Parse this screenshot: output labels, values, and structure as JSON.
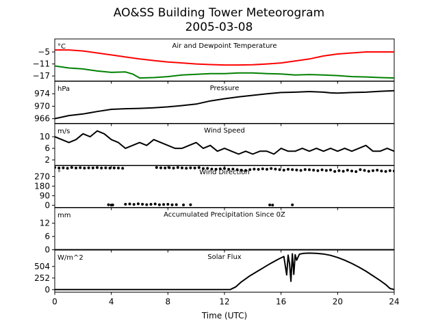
{
  "figure": {
    "title_line1": "AO&SS Building Tower Meteorogram",
    "title_line2": "2005-03-08"
  },
  "x_axis": {
    "label": "Time (UTC)",
    "range": [
      0,
      24
    ],
    "ticks": [
      0,
      4,
      8,
      12,
      16,
      20,
      24
    ]
  },
  "chart_data": [
    {
      "type": "line",
      "title": "Air and Dewpoint Temperature",
      "unit": "°C",
      "ylim": [
        -19.5,
        1.5
      ],
      "yticks": [
        "-5",
        "-11",
        "-17"
      ],
      "series": [
        {
          "color": "#ff0000",
          "x": [
            0,
            1,
            2,
            3,
            4,
            5,
            6,
            7,
            8,
            9,
            10,
            11,
            12,
            13,
            14,
            15,
            16,
            17,
            18,
            19,
            20,
            21,
            22,
            23,
            24
          ],
          "values": [
            -4,
            -4,
            -4.5,
            -5.5,
            -6.5,
            -7.5,
            -8.5,
            -9.3,
            -10,
            -10.5,
            -11,
            -11.3,
            -11.5,
            -11.5,
            -11.4,
            -11,
            -10.5,
            -9.5,
            -8.5,
            -7,
            -6,
            -5.5,
            -5,
            -5,
            -5
          ]
        },
        {
          "color": "#008000",
          "x": [
            0,
            1,
            2,
            3,
            4,
            5,
            5.5,
            6,
            7,
            8,
            9,
            10,
            11,
            12,
            13,
            14,
            15,
            16,
            17,
            18,
            19,
            20,
            21,
            22,
            23,
            24
          ],
          "values": [
            -12,
            -13,
            -13.5,
            -14.5,
            -15.2,
            -15,
            -16,
            -18,
            -17.8,
            -17.3,
            -16.5,
            -16.2,
            -15.8,
            -15.8,
            -15.5,
            -15.5,
            -15.8,
            -16,
            -16.5,
            -16.3,
            -16.5,
            -16.8,
            -17.3,
            -17.5,
            -17.8,
            -18
          ]
        }
      ]
    },
    {
      "type": "line",
      "title": "Pressure",
      "unit": "hPa",
      "ylim": [
        964.5,
        978
      ],
      "yticks": [
        "974",
        "970",
        "966"
      ],
      "series": [
        {
          "color": "#000000",
          "x": [
            0,
            1,
            2,
            3,
            4,
            5,
            6,
            7,
            8,
            9,
            10,
            11,
            12,
            13,
            14,
            15,
            16,
            17,
            18,
            19,
            19.5,
            20,
            21,
            22,
            23,
            24
          ],
          "values": [
            966,
            967,
            967.5,
            968.3,
            969,
            969.2,
            969.3,
            969.5,
            969.8,
            970.2,
            970.7,
            971.7,
            972.4,
            973,
            973.5,
            974,
            974.4,
            974.5,
            974.7,
            974.5,
            974.3,
            974.2,
            974.4,
            974.5,
            974.8,
            975
          ]
        }
      ]
    },
    {
      "type": "line",
      "title": "Wind Speed",
      "unit": "m/s",
      "ylim": [
        0,
        14.5
      ],
      "yticks": [
        "10",
        "6",
        "2"
      ],
      "series": [
        {
          "color": "#000000",
          "x": [
            0,
            0.5,
            1,
            1.5,
            2,
            2.5,
            3,
            3.5,
            4,
            4.5,
            5,
            5.5,
            6,
            6.5,
            7,
            7.5,
            8,
            8.5,
            9,
            9.5,
            10,
            10.5,
            11,
            11.5,
            12,
            12.5,
            13,
            13.5,
            14,
            14.5,
            15,
            15.5,
            16,
            16.5,
            17,
            17.5,
            18,
            18.5,
            19,
            19.5,
            20,
            20.5,
            21,
            21.5,
            22,
            22.5,
            23,
            23.5,
            24
          ],
          "values": [
            10,
            9,
            8,
            9,
            11,
            10,
            12,
            11,
            9,
            8,
            6,
            7,
            8,
            7,
            9,
            8,
            7,
            6,
            6,
            7,
            8,
            6,
            7,
            5,
            6,
            5,
            4,
            5,
            4,
            5,
            5,
            4,
            6,
            5,
            5,
            6,
            5,
            6,
            5,
            6,
            5,
            6,
            5,
            6,
            7,
            5,
            5,
            6,
            5
          ]
        }
      ]
    },
    {
      "type": "scatter",
      "title": "Wind Direction",
      "unit": "°",
      "ylim": [
        -20,
        375
      ],
      "yticks": [
        "270",
        "180",
        "90",
        "0"
      ],
      "series": [
        {
          "color": "#000000",
          "x": [
            0,
            0.3,
            0.6,
            0.9,
            1.2,
            1.5,
            1.8,
            2.1,
            2.4,
            2.7,
            3,
            3.3,
            3.6,
            3.9,
            4.2,
            4.5,
            4.8,
            7.2,
            7.5,
            7.8,
            8.1,
            8.4,
            8.7,
            9,
            9.3,
            9.6,
            9.9,
            10.2,
            10.5,
            10.8,
            11.1,
            11.4,
            11.7,
            12,
            12.3,
            12.6,
            12.9,
            13.2,
            13.5,
            13.8,
            14.1,
            14.4,
            14.7,
            15,
            15.3,
            15.6,
            15.9,
            16.2,
            16.5,
            16.8,
            17.1,
            17.4,
            17.7,
            18,
            18.3,
            18.6,
            18.9,
            19.2,
            19.5,
            19.8,
            20.1,
            20.4,
            20.7,
            21,
            21.3,
            21.6,
            21.9,
            22.2,
            22.5,
            22.8,
            23.1,
            23.4,
            23.7,
            24,
            3.8,
            4,
            4.1,
            5,
            5.3,
            5.6,
            5.9,
            6.2,
            6.5,
            6.8,
            7.1,
            7.4,
            7.7,
            8,
            8.3,
            8.6,
            9.1,
            9.6,
            15.2,
            15.4,
            16.8
          ],
          "values": [
            355,
            350,
            352,
            348,
            355,
            350,
            353,
            349,
            352,
            351,
            354,
            350,
            352,
            349,
            351,
            350,
            348,
            355,
            352,
            350,
            353,
            349,
            355,
            351,
            348,
            352,
            350,
            354,
            345,
            347,
            340,
            338,
            342,
            345,
            338,
            340,
            335,
            330,
            328,
            335,
            340,
            337,
            342,
            338,
            345,
            340,
            335,
            330,
            338,
            335,
            332,
            328,
            336,
            334,
            330,
            325,
            333,
            327,
            332,
            318,
            325,
            320,
            330,
            322,
            316,
            335,
            328,
            320,
            325,
            330,
            322,
            318,
            325,
            322,
            5,
            2,
            3,
            10,
            12,
            8,
            14,
            10,
            6,
            9,
            12,
            5,
            7,
            9,
            4,
            6,
            3,
            5,
            3,
            2,
            4
          ]
        }
      ]
    },
    {
      "type": "line",
      "title": "Accumulated Precipitation Since 0Z",
      "unit": "mm",
      "ylim": [
        0,
        19
      ],
      "yticks": [
        "12",
        "6",
        "0"
      ],
      "series": [
        {
          "color": "#000000",
          "x": [
            0,
            24
          ],
          "values": [
            0,
            0
          ]
        }
      ]
    },
    {
      "type": "line",
      "title": "Solar Flux",
      "unit": "W/m^2",
      "ylim": [
        -55,
        860
      ],
      "yticks": [
        "504",
        "252",
        "0"
      ],
      "series": [
        {
          "color": "#000000",
          "x": [
            0,
            12.4,
            12.8,
            13.2,
            13.8,
            14.5,
            15.2,
            15.8,
            16.2,
            16.4,
            16.5,
            16.6,
            16.7,
            16.8,
            16.9,
            17,
            17.1,
            17.3,
            17.6,
            18,
            18.5,
            19,
            19.5,
            20,
            20.5,
            21,
            21.5,
            22,
            22.5,
            23,
            23.4,
            23.7,
            24
          ],
          "values": [
            0,
            0,
            60,
            170,
            300,
            430,
            560,
            660,
            720,
            320,
            750,
            560,
            180,
            780,
            330,
            760,
            640,
            770,
            790,
            795,
            790,
            775,
            745,
            700,
            640,
            570,
            490,
            400,
            300,
            200,
            110,
            25,
            0
          ]
        }
      ]
    }
  ]
}
